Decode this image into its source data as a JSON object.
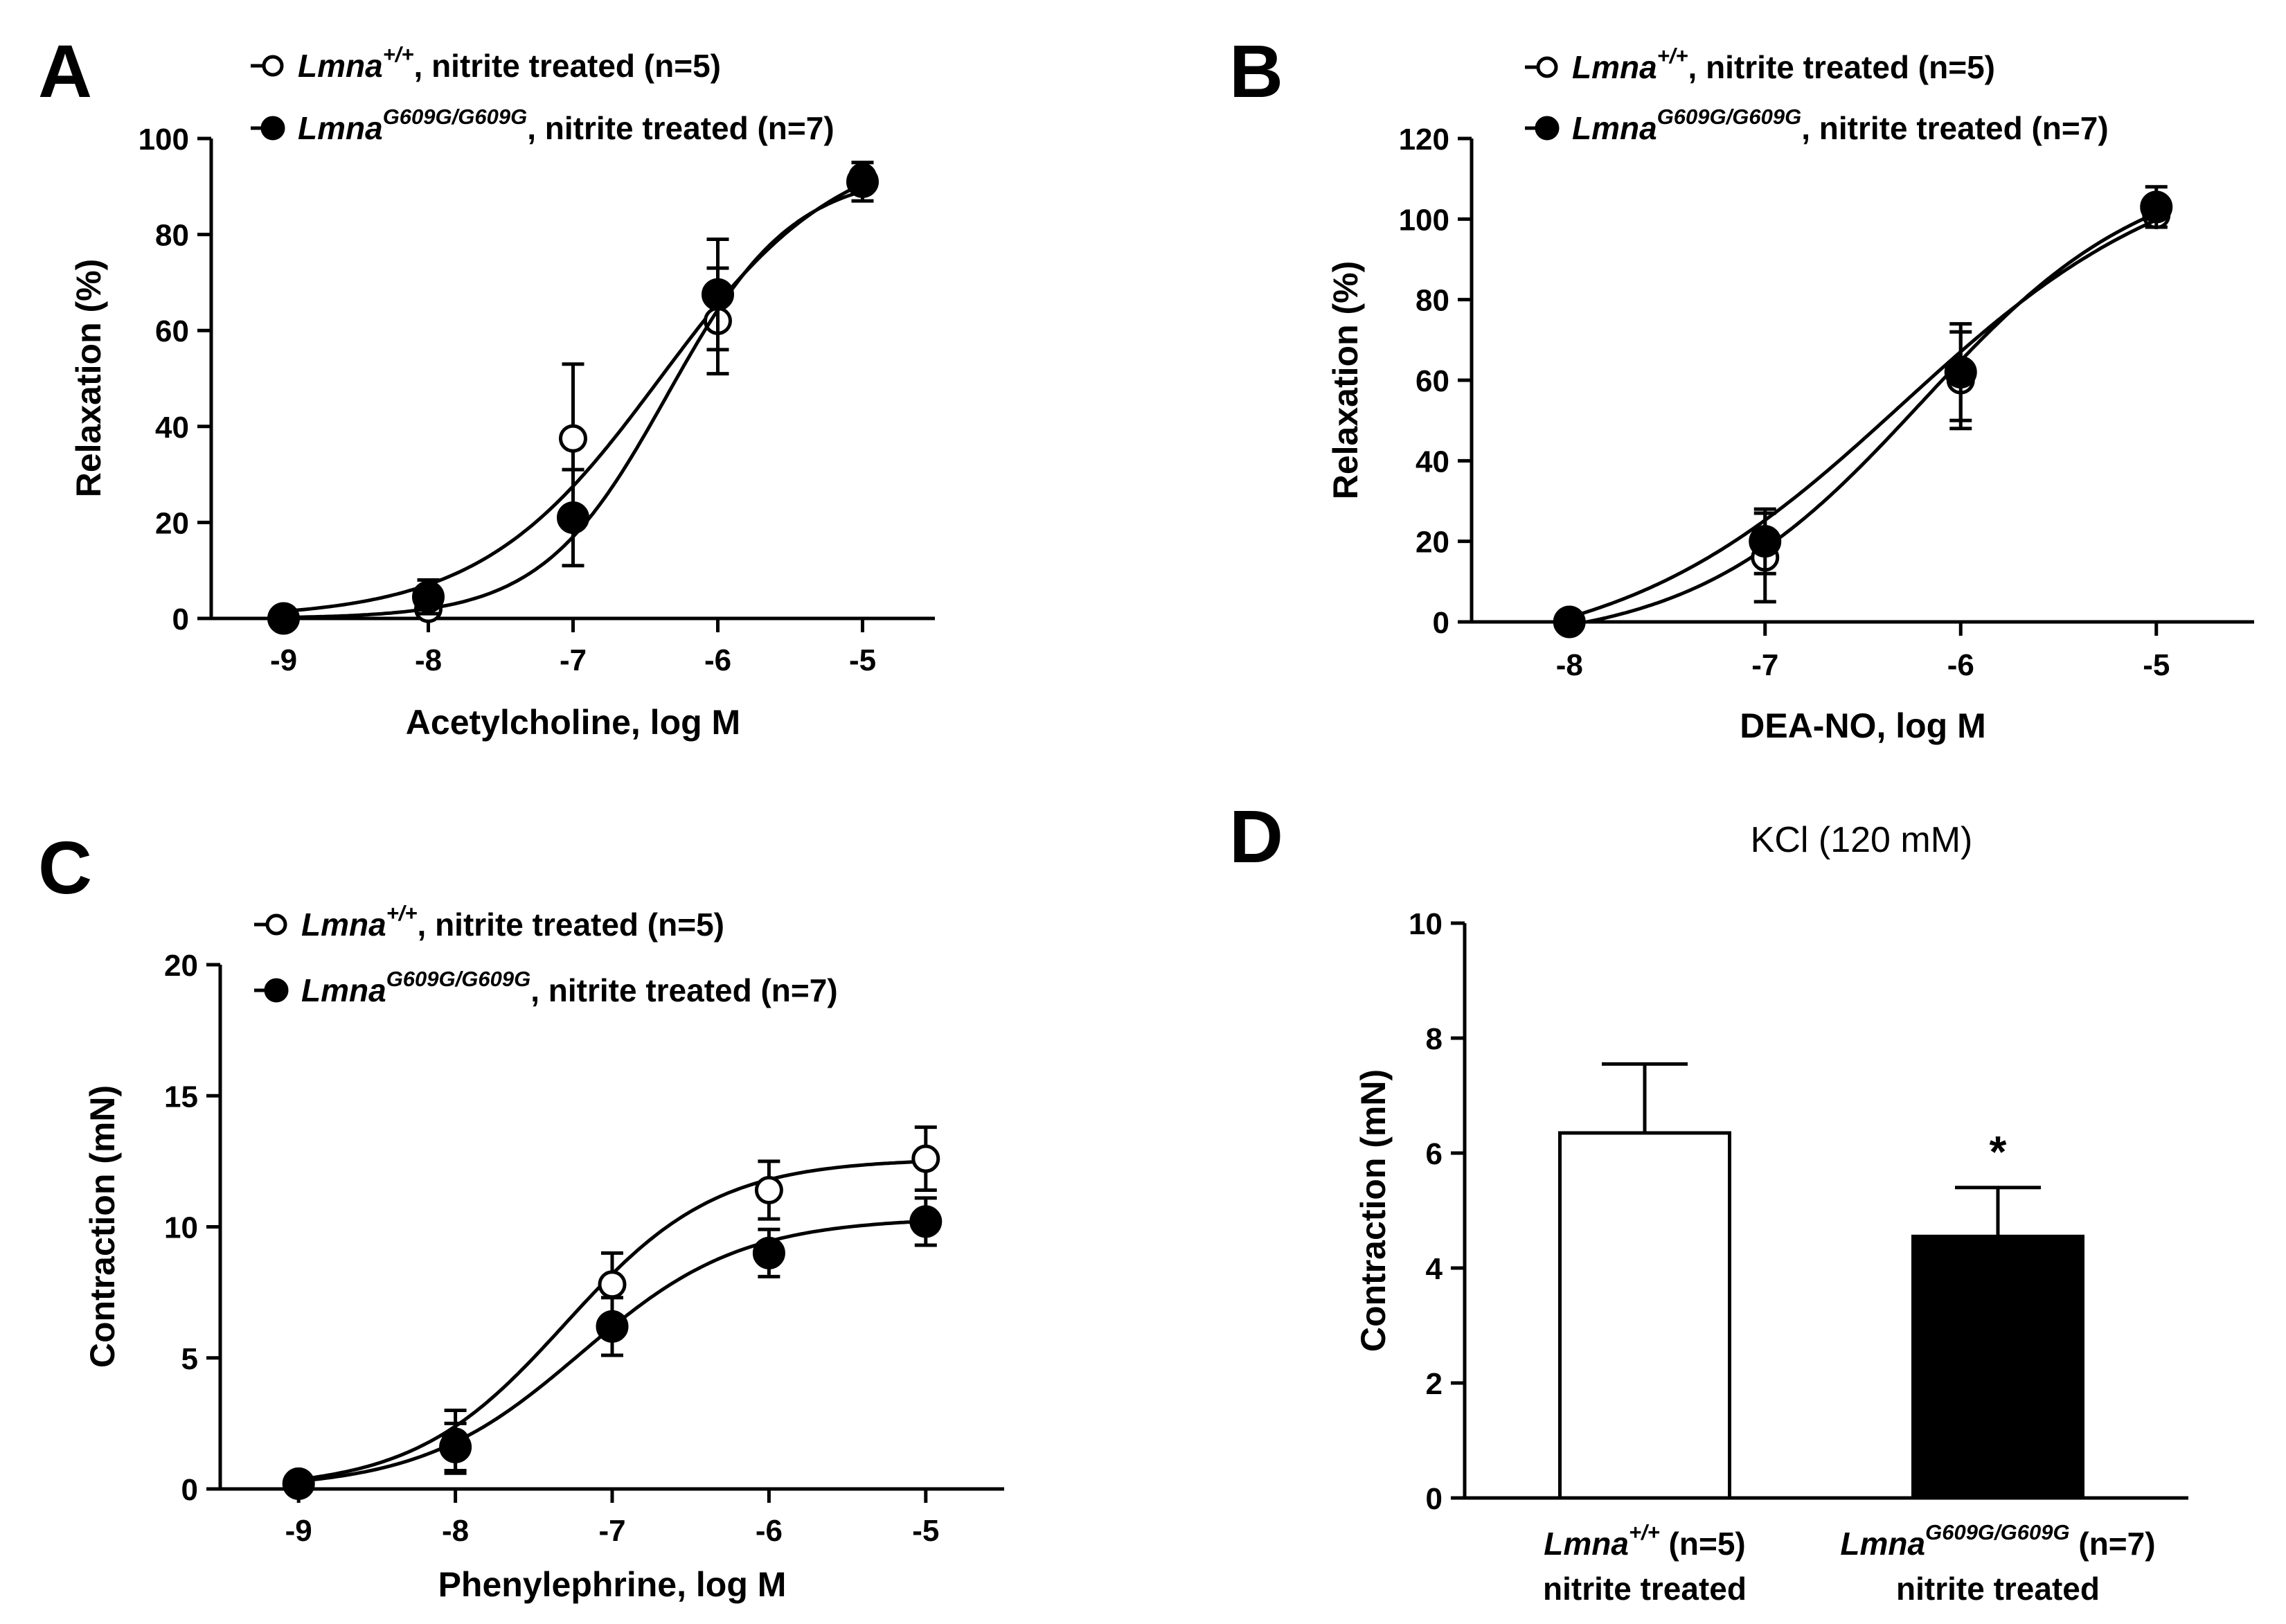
{
  "chart_data": [
    {
      "panel": "A",
      "type": "line",
      "xlabel": "Acetylcholine, log M",
      "ylabel": "Relaxation (%)",
      "xlim": [
        -9.5,
        -4.5
      ],
      "ylim": [
        0,
        100
      ],
      "xticks": [
        -9,
        -8,
        -7,
        -6,
        -5
      ],
      "yticks": [
        0,
        20,
        40,
        60,
        80,
        100
      ],
      "grid": false,
      "legend_position": "top-left",
      "series": [
        {
          "name_main": "Lmna",
          "name_sup": "+/+",
          "name_rest": ", nitrite treated (n=5)",
          "marker": "open-circle",
          "x": [
            -9,
            -8,
            -7,
            -6,
            -5
          ],
          "y": [
            0,
            2,
            37.5,
            62,
            92
          ],
          "err": [
            0,
            1,
            15.5,
            11,
            3
          ],
          "fit": {
            "bottom": 0,
            "top": 100,
            "logEC50": -6.4,
            "hill": 0.7
          }
        },
        {
          "name_main": "Lmna",
          "name_sup": "G609G/G609G",
          "name_rest": ", nitrite treated (n=7)",
          "marker": "filled-circle",
          "x": [
            -9,
            -8,
            -7,
            -6,
            -5
          ],
          "y": [
            0,
            4.5,
            21,
            67.5,
            91
          ],
          "err": [
            0,
            3.5,
            10,
            11.5,
            4
          ],
          "fit": {
            "bottom": 0,
            "top": 93,
            "logEC50": -6.35,
            "hill": 1.0
          }
        }
      ]
    },
    {
      "panel": "B",
      "type": "line",
      "xlabel": "DEA-NO, log M",
      "ylabel": "Relaxation (%)",
      "xlim": [
        -8.5,
        -4.5
      ],
      "ylim": [
        0,
        120
      ],
      "xticks": [
        -8,
        -7,
        -6,
        -5
      ],
      "yticks": [
        0,
        20,
        40,
        60,
        80,
        100,
        120
      ],
      "grid": false,
      "legend_position": "top-left",
      "series": [
        {
          "name_main": "Lmna",
          "name_sup": "+/+",
          "name_rest": ", nitrite treated (n=5)",
          "marker": "open-circle",
          "x": [
            -8,
            -7,
            -6,
            -5
          ],
          "y": [
            0,
            16,
            60,
            101
          ],
          "err": [
            0,
            11,
            12,
            3
          ],
          "fit": {
            "bottom": -6,
            "top": 115,
            "logEC50": -6.2,
            "hill": 0.75
          }
        },
        {
          "name_main": "Lmna",
          "name_sup": "G609G/G609G",
          "name_rest": ", nitrite treated (n=7)",
          "marker": "filled-circle",
          "x": [
            -8,
            -7,
            -6,
            -5
          ],
          "y": [
            0,
            20,
            62,
            103
          ],
          "err": [
            0,
            8,
            12,
            5
          ],
          "fit": {
            "bottom": -10,
            "top": 118,
            "logEC50": -6.3,
            "hill": 0.6
          }
        }
      ]
    },
    {
      "panel": "C",
      "type": "line",
      "xlabel": "Phenylephrine, log M",
      "ylabel": "Contraction (mN)",
      "xlim": [
        -9.5,
        -4.5
      ],
      "ylim": [
        0,
        20
      ],
      "xticks": [
        -9,
        -8,
        -7,
        -6,
        -5
      ],
      "yticks": [
        0,
        5,
        10,
        15,
        20
      ],
      "grid": false,
      "legend_position": "top-left",
      "series": [
        {
          "name_main": "Lmna",
          "name_sup": "+/+",
          "name_rest": ", nitrite treated (n=5)",
          "marker": "open-circle",
          "x": [
            -9,
            -8,
            -7,
            -6,
            -5
          ],
          "y": [
            0.2,
            1.8,
            7.8,
            11.4,
            12.6
          ],
          "err": [
            0,
            1.2,
            1.2,
            1.1,
            1.2
          ],
          "fit": {
            "bottom": 0,
            "top": 12.6,
            "logEC50": -7.3,
            "hill": 0.9
          }
        },
        {
          "name_main": "Lmna",
          "name_sup": "G609G/G609G",
          "name_rest": ", nitrite treated (n=7)",
          "marker": "filled-circle",
          "x": [
            -9,
            -8,
            -7,
            -6,
            -5
          ],
          "y": [
            0.2,
            1.6,
            6.2,
            9.0,
            10.2
          ],
          "err": [
            0,
            0.9,
            1.1,
            0.9,
            0.9
          ],
          "fit": {
            "bottom": 0,
            "top": 10.35,
            "logEC50": -7.2,
            "hill": 0.85
          }
        }
      ]
    },
    {
      "panel": "D",
      "type": "bar",
      "title": "KCl (120 mM)",
      "ylabel": "Contraction (mN)",
      "ylim": [
        0,
        10
      ],
      "yticks": [
        0,
        2,
        4,
        6,
        8,
        10
      ],
      "grid": false,
      "categories": [
        {
          "main": "Lmna",
          "sup": "+/+",
          "rest": " (n=5)",
          "line2": "nitrite treated"
        },
        {
          "main": "Lmna",
          "sup": "G609G/G609G",
          "rest": " (n=7)",
          "line2": "nitrite treated"
        }
      ],
      "values": [
        6.35,
        4.55
      ],
      "err": [
        1.2,
        0.85
      ],
      "fill": [
        "#ffffff",
        "#000000"
      ],
      "annotation": "*"
    }
  ]
}
